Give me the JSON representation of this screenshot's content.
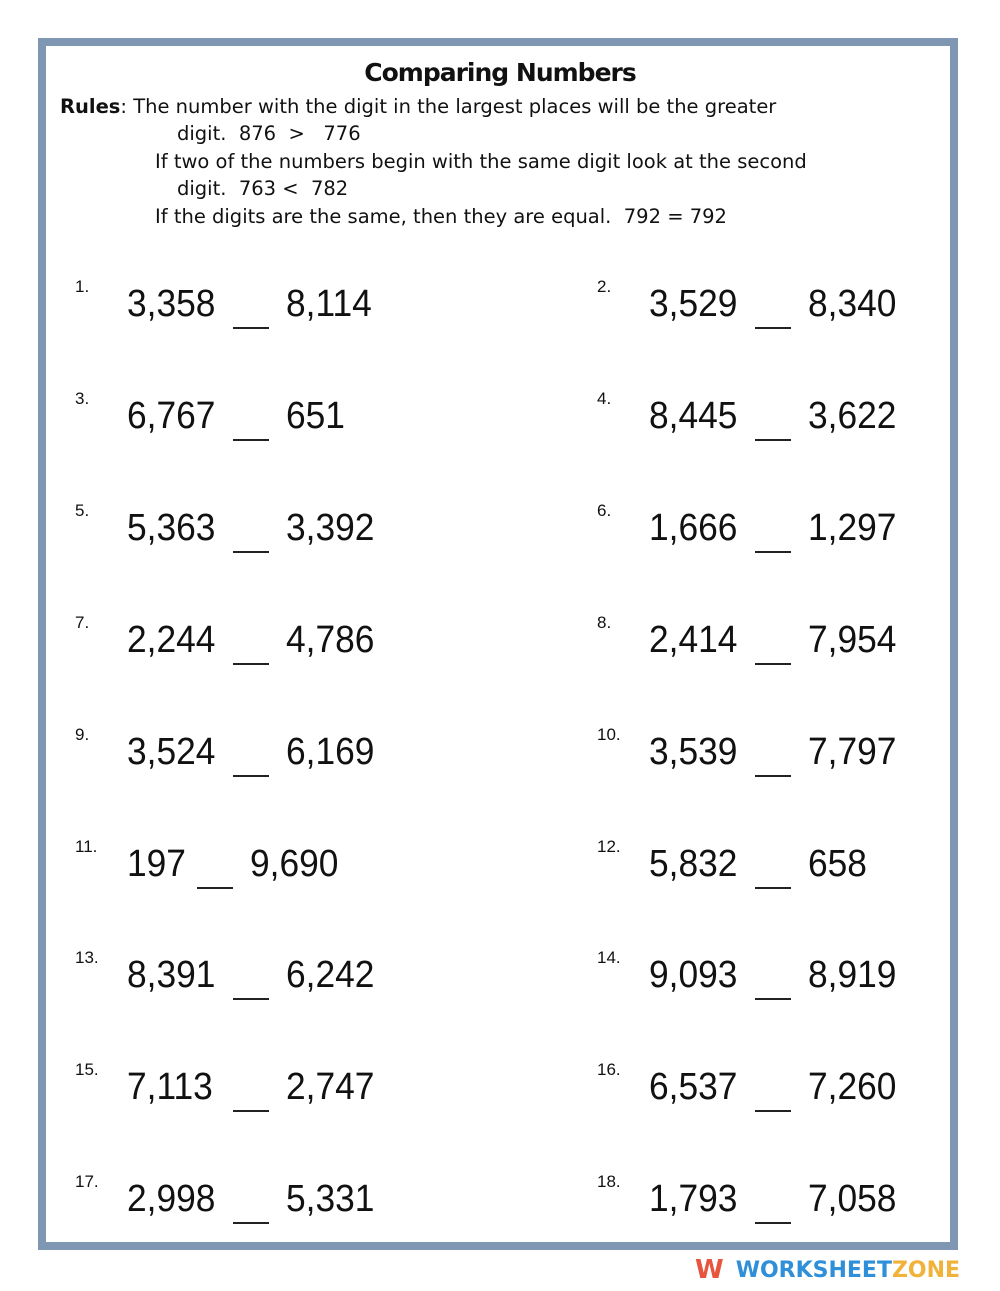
{
  "title": "Comparing Numbers",
  "rules": {
    "label": "Rules",
    "line1": ": The number with the digit in the largest places will be the greater",
    "line2": "digit.  876  >   776",
    "line3": "If two of the numbers begin with the same digit look at the second",
    "line4": "digit.  763 <  782",
    "line5": "If the digits are the same, then they are equal.  792 = 792"
  },
  "problems": [
    {
      "n": "1.",
      "a": "3,358",
      "b": "8,114"
    },
    {
      "n": "2.",
      "a": "3,529",
      "b": "8,340"
    },
    {
      "n": "3.",
      "a": "6,767",
      "b": "651"
    },
    {
      "n": "4.",
      "a": "8,445",
      "b": "3,622"
    },
    {
      "n": "5.",
      "a": "5,363",
      "b": "3,392"
    },
    {
      "n": "6.",
      "a": "1,666",
      "b": "1,297"
    },
    {
      "n": "7.",
      "a": "2,244",
      "b": "4,786"
    },
    {
      "n": "8.",
      "a": "2,414",
      "b": "7,954"
    },
    {
      "n": "9.",
      "a": "3,524",
      "b": "6,169"
    },
    {
      "n": "10.",
      "a": "3,539",
      "b": "7,797"
    },
    {
      "n": "11.",
      "a": "197",
      "b": "9,690"
    },
    {
      "n": "12.",
      "a": "5,832",
      "b": "658"
    },
    {
      "n": "13.",
      "a": "8,391",
      "b": "6,242"
    },
    {
      "n": "14.",
      "a": "9,093",
      "b": "8,919"
    },
    {
      "n": "15.",
      "a": "7,113",
      "b": "2,747"
    },
    {
      "n": "16.",
      "a": "6,537",
      "b": "7,260"
    },
    {
      "n": "17.",
      "a": "2,998",
      "b": "5,331"
    },
    {
      "n": "18.",
      "a": "1,793",
      "b": "7,058"
    }
  ],
  "logo": {
    "icon": "W",
    "part1": "WORKSHEET",
    "part2": "ZONE",
    "color1": "#2f8fd8",
    "color2": "#f0b23a"
  }
}
